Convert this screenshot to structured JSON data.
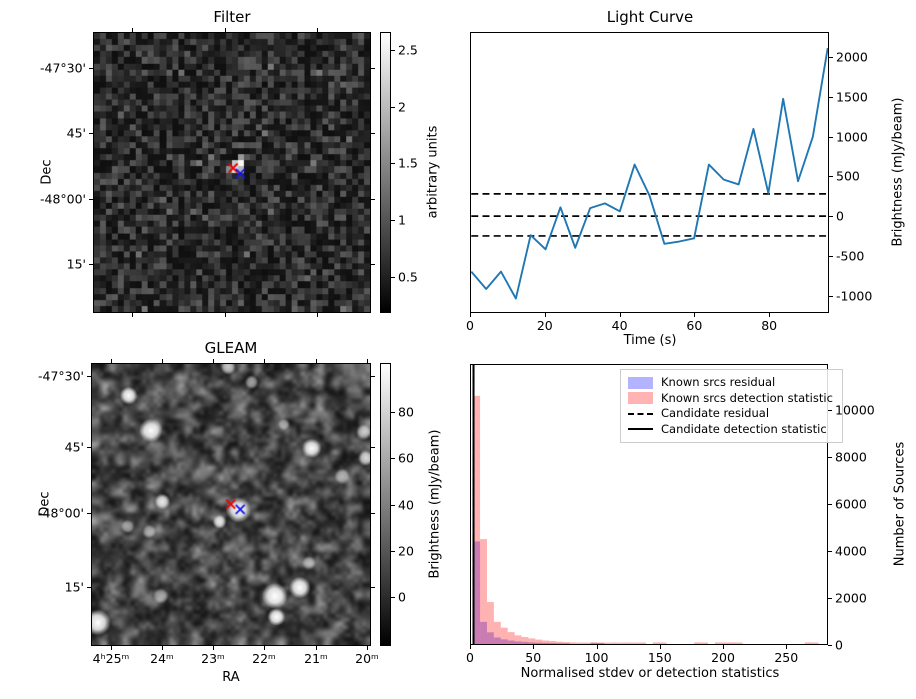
{
  "chart_data": [
    {
      "type": "heatmap",
      "panel": "filter",
      "title": "Filter",
      "ylabel": "Dec",
      "yticks": [
        "-47°30'",
        "45'",
        "-48°00'",
        "15'"
      ],
      "image": "pixelated grayscale noise map with bright point source at centre",
      "markers": [
        {
          "shape": "x",
          "color": "#ee0000",
          "fx": 0.504,
          "fy": 0.484
        },
        {
          "shape": "x",
          "color": "#1414ee",
          "fx": 0.53,
          "fy": 0.503
        }
      ],
      "colorbar": {
        "label": "arbitrary units",
        "ticks": [
          2.5,
          2.0,
          1.5,
          1.0,
          0.5
        ],
        "range": [
          2.66,
          0.18
        ]
      }
    },
    {
      "type": "line",
      "panel": "light-curve",
      "title": "Light Curve",
      "xlabel": "Time (s)",
      "ylabel": "Brightness (mJy/beam)",
      "line_color": "#1f77b4",
      "x": [
        0,
        4,
        8,
        12,
        16,
        20,
        24,
        28,
        32,
        36,
        40,
        44,
        48,
        52,
        56,
        60,
        64,
        68,
        72,
        76,
        80,
        84,
        88,
        92,
        96
      ],
      "y": [
        -700,
        -920,
        -700,
        -1040,
        -240,
        -420,
        110,
        -400,
        100,
        160,
        60,
        650,
        260,
        -350,
        -320,
        -280,
        650,
        460,
        400,
        1100,
        290,
        1480,
        440,
        1000,
        2120
      ],
      "threshold_lines": [
        280,
        0,
        -250
      ],
      "xticks": [
        0,
        20,
        40,
        60,
        80
      ],
      "yticks": [
        2000,
        1500,
        1000,
        500,
        0,
        -500,
        -1000
      ],
      "xlim": [
        0,
        96
      ],
      "ylim": [
        -1210,
        2310
      ]
    },
    {
      "type": "heatmap",
      "panel": "gleam",
      "title": "GLEAM",
      "xlabel": "RA",
      "ylabel": "Dec",
      "xticks": [
        "4ʰ25ᵐ",
        "24ᵐ",
        "23ᵐ",
        "22ᵐ",
        "21ᵐ",
        "20ᵐ"
      ],
      "yticks": [
        "-47°30'",
        "45'",
        "-48°00'",
        "15'"
      ],
      "image": "smoothed grayscale sky image with bright point sources",
      "sources": [
        {
          "fx": 0.132,
          "fy": 0.112,
          "r": 9,
          "b": 1.0
        },
        {
          "fx": 0.212,
          "fy": 0.236,
          "r": 12,
          "b": 1.0
        },
        {
          "fx": 0.79,
          "fy": 0.3,
          "r": 10,
          "b": 1.0
        },
        {
          "fx": 0.985,
          "fy": 0.335,
          "r": 8,
          "b": 0.8
        },
        {
          "fx": 0.253,
          "fy": 0.49,
          "r": 8,
          "b": 0.9
        },
        {
          "fx": 0.527,
          "fy": 0.519,
          "r": 13,
          "b": 1.0
        },
        {
          "fx": 0.459,
          "fy": 0.561,
          "r": 7,
          "b": 0.85
        },
        {
          "fx": 0.657,
          "fy": 0.825,
          "r": 13,
          "b": 1.0
        },
        {
          "fx": 0.747,
          "fy": 0.796,
          "r": 11,
          "b": 1.0
        },
        {
          "fx": 0.663,
          "fy": 0.9,
          "r": 9,
          "b": 1.0
        },
        {
          "fx": 0.021,
          "fy": 0.92,
          "r": 13,
          "b": 1.0
        },
        {
          "fx": 0.206,
          "fy": 0.596,
          "r": 7,
          "b": 0.55
        },
        {
          "fx": 0.128,
          "fy": 0.578,
          "r": 7,
          "b": 0.55
        },
        {
          "fx": 0.247,
          "fy": 0.825,
          "r": 8,
          "b": 0.6
        },
        {
          "fx": 0.9,
          "fy": 0.4,
          "r": 8,
          "b": 0.6
        },
        {
          "fx": 0.978,
          "fy": 0.242,
          "r": 8,
          "b": 0.7
        },
        {
          "fx": 0.574,
          "fy": 0.065,
          "r": 7,
          "b": 0.6
        },
        {
          "fx": 0.49,
          "fy": 0.01,
          "r": 8,
          "b": 0.75
        },
        {
          "fx": 0.78,
          "fy": 0.708,
          "r": 7,
          "b": 0.5
        },
        {
          "fx": 0.69,
          "fy": 0.215,
          "r": 6,
          "b": 0.5
        }
      ],
      "markers": [
        {
          "shape": "x",
          "color": "#ee0000",
          "fx": 0.499,
          "fy": 0.499
        },
        {
          "shape": "x",
          "color": "#1414ee",
          "fx": 0.533,
          "fy": 0.517
        }
      ],
      "colorbar": {
        "label": "Brightness (mJy/beam)",
        "ticks": [
          80,
          60,
          40,
          20,
          0
        ],
        "range": [
          101,
          -21
        ]
      }
    },
    {
      "type": "histogram",
      "panel": "stats",
      "xlabel": "Normalised stdev or detection statistics",
      "ylabel": "Number of Sources",
      "bin_start": 1.5,
      "bin_width": 5.5,
      "series": [
        {
          "name": "Known srcs residual",
          "color": "rgba(0,0,255,0.3)",
          "values": [
            4400,
            950,
            500,
            280,
            200,
            150,
            110,
            90,
            70,
            60,
            50,
            40,
            35,
            30,
            0,
            0,
            0,
            50,
            40,
            0,
            0,
            0,
            0,
            0,
            0,
            0,
            0,
            0,
            0,
            0,
            0,
            0,
            0,
            0,
            0,
            0,
            0,
            0,
            0,
            0,
            0,
            0,
            0,
            0,
            0,
            0,
            0,
            0,
            0,
            0
          ]
        },
        {
          "name": "Known srcs detection statistic",
          "color": "rgba(255,0,0,0.3)",
          "values": [
            10650,
            4500,
            1800,
            950,
            700,
            510,
            370,
            300,
            240,
            190,
            150,
            130,
            100,
            80,
            70,
            60,
            60,
            70,
            65,
            60,
            65,
            60,
            65,
            60,
            65,
            0,
            70,
            65,
            0,
            0,
            0,
            0,
            70,
            65,
            0,
            70,
            65,
            70,
            65,
            0,
            0,
            0,
            0,
            0,
            0,
            0,
            0,
            0,
            70,
            65
          ]
        }
      ],
      "vlines": [
        {
          "name": "Candidate residual",
          "style": "dashed",
          "x": 1.0
        },
        {
          "name": "Candidate detection statistic",
          "style": "solid",
          "x": 1.0
        }
      ],
      "legend": [
        {
          "label": "Known srcs residual",
          "swatch": "patch",
          "color": "#b3b3ff"
        },
        {
          "label": "Known srcs detection statistic",
          "swatch": "patch",
          "color": "#ffb3b3"
        },
        {
          "label": "Candidate residual",
          "swatch": "dashed-line",
          "color": "#000000"
        },
        {
          "label": "Candidate detection statistic",
          "swatch": "solid-line",
          "color": "#000000"
        }
      ],
      "xticks": [
        0,
        50,
        100,
        150,
        200,
        250
      ],
      "yticks": [
        10000,
        8000,
        6000,
        4000,
        2000,
        0
      ],
      "xlim": [
        0,
        283
      ],
      "ylim": [
        0,
        11970
      ]
    }
  ]
}
